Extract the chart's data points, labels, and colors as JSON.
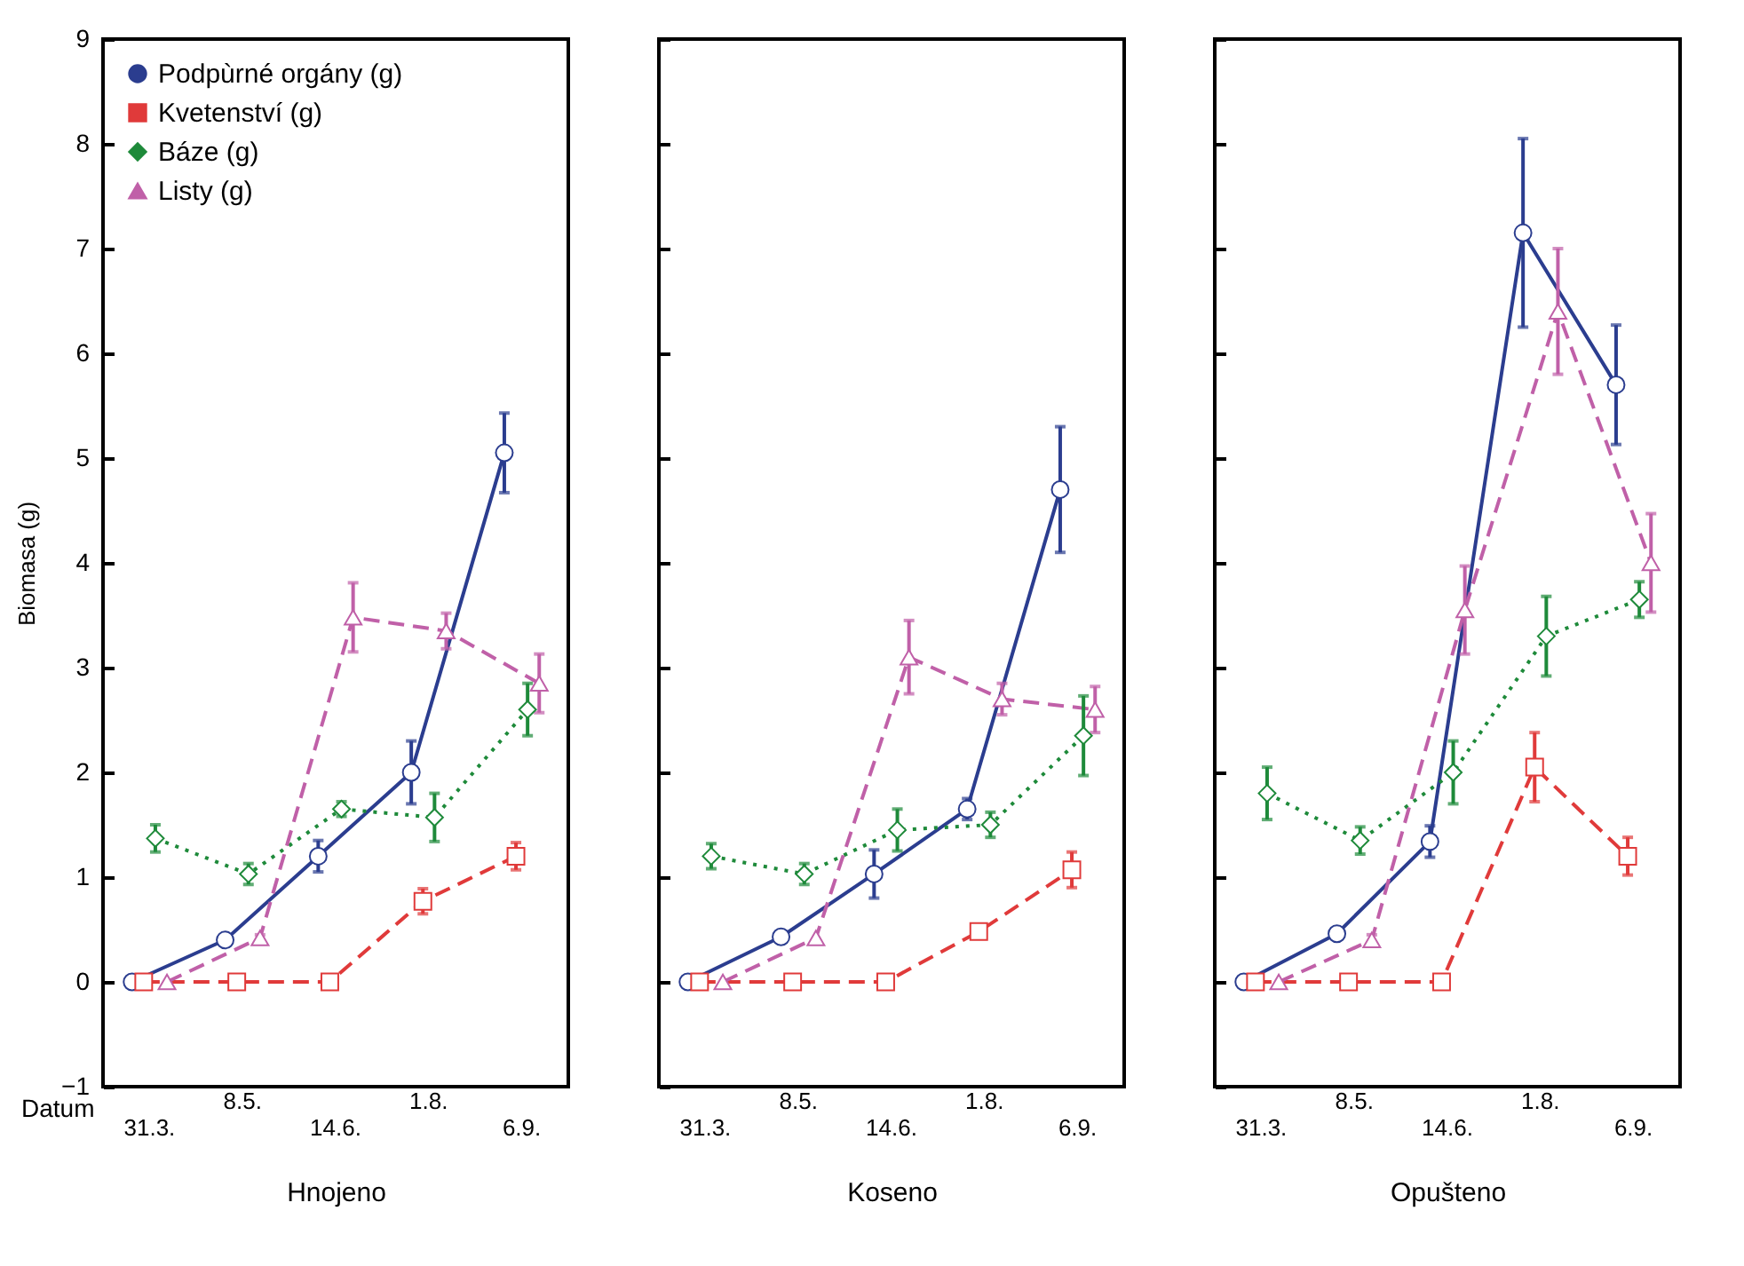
{
  "chart_data": [
    {
      "type": "line",
      "xlabel": "Hnojeno",
      "ylabel": "Biomasa (g)",
      "annotations": [
        "Datum"
      ],
      "legend": "top left",
      "categories": [
        "31.3.",
        "8.5.",
        "14.6.",
        "1.8.",
        "6.9."
      ],
      "ylim": [
        -1,
        9
      ],
      "yticks": [
        -1,
        0,
        1,
        2,
        3,
        4,
        5,
        6,
        7,
        8,
        9
      ],
      "series": [
        {
          "name": "Podpùrné orgány (g)",
          "color": "#2b3d8f",
          "marker": "circle",
          "line_style": "solid",
          "values": [
            0,
            0.4,
            1.2,
            2.0,
            5.05
          ],
          "errors": [
            null,
            0.03,
            0.15,
            0.3,
            0.38
          ]
        },
        {
          "name": "Kvetenství (g)",
          "color": "#e03a3a",
          "marker": "square",
          "line_style": "dashed",
          "values": [
            0,
            0,
            0,
            0.77,
            1.2
          ],
          "errors": [
            null,
            null,
            null,
            0.12,
            0.13
          ]
        },
        {
          "name": "Báze (g)",
          "color": "#1e8a3a",
          "marker": "diamond",
          "line_style": "dotted",
          "values": [
            1.37,
            1.03,
            1.65,
            1.57,
            2.6
          ],
          "errors": [
            0.13,
            0.1,
            0.07,
            0.23,
            0.25
          ]
        },
        {
          "name": "Listy (g)",
          "color": "#c060a8",
          "marker": "triangle",
          "line_style": "dashed",
          "values": [
            0,
            0.42,
            3.48,
            3.35,
            2.85
          ],
          "errors": [
            null,
            0.03,
            0.33,
            0.17,
            0.28
          ]
        }
      ]
    },
    {
      "type": "line",
      "xlabel": "Koseno",
      "tick_labels": "x",
      "categories": [
        "31.3.",
        "8.5.",
        "14.6.",
        "1.8.",
        "6.9."
      ],
      "ylim": [
        -1,
        9
      ],
      "yticks": [
        -1,
        0,
        1,
        2,
        3,
        4,
        5,
        6,
        7,
        8,
        9
      ],
      "series": [
        {
          "color": "#2b3d8f",
          "marker": "circle",
          "line_style": "solid",
          "values": [
            0,
            0.43,
            1.03,
            1.65,
            4.7
          ],
          "errors": [
            null,
            null,
            0.23,
            0.1,
            0.6
          ]
        },
        {
          "color": "#e03a3a",
          "marker": "square",
          "line_style": "dashed",
          "values": [
            0,
            0,
            0,
            0.48,
            1.07
          ],
          "errors": [
            null,
            null,
            null,
            null,
            0.17
          ]
        },
        {
          "color": "#1e8a3a",
          "marker": "diamond",
          "line_style": "dotted",
          "values": [
            1.2,
            1.03,
            1.45,
            1.5,
            2.35
          ],
          "errors": [
            0.12,
            0.1,
            0.2,
            0.12,
            0.38
          ]
        },
        {
          "color": "#c060a8",
          "marker": "triangle",
          "line_style": "dashed",
          "values": [
            0,
            0.42,
            3.1,
            2.7,
            2.6
          ],
          "errors": [
            null,
            null,
            0.35,
            0.15,
            0.22
          ]
        }
      ]
    },
    {
      "type": "line",
      "xlabel": "Opušteno",
      "tick_labels": "x",
      "categories": [
        "31.3.",
        "8.5.",
        "14.6.",
        "1.8.",
        "6.9."
      ],
      "ylim": [
        -1,
        9
      ],
      "yticks": [
        -1,
        0,
        1,
        2,
        3,
        4,
        5,
        6,
        7,
        8,
        9
      ],
      "series": [
        {
          "color": "#2b3d8f",
          "marker": "circle",
          "line_style": "solid",
          "values": [
            0,
            0.46,
            1.34,
            7.15,
            5.7
          ],
          "errors": [
            null,
            null,
            0.15,
            0.9,
            0.57
          ]
        },
        {
          "color": "#e03a3a",
          "marker": "square",
          "line_style": "dashed",
          "values": [
            0,
            0,
            0,
            2.05,
            1.2
          ],
          "errors": [
            null,
            null,
            null,
            0.33,
            0.18
          ]
        },
        {
          "color": "#1e8a3a",
          "marker": "diamond",
          "line_style": "dotted",
          "values": [
            1.8,
            1.35,
            2.0,
            3.3,
            3.65
          ],
          "errors": [
            0.25,
            0.13,
            0.3,
            0.38,
            0.17
          ]
        },
        {
          "color": "#c060a8",
          "marker": "triangle",
          "line_style": "dashed",
          "values": [
            0,
            0.4,
            3.55,
            6.4,
            4.0
          ],
          "errors": [
            null,
            0.05,
            0.42,
            0.6,
            0.47
          ]
        }
      ]
    }
  ]
}
